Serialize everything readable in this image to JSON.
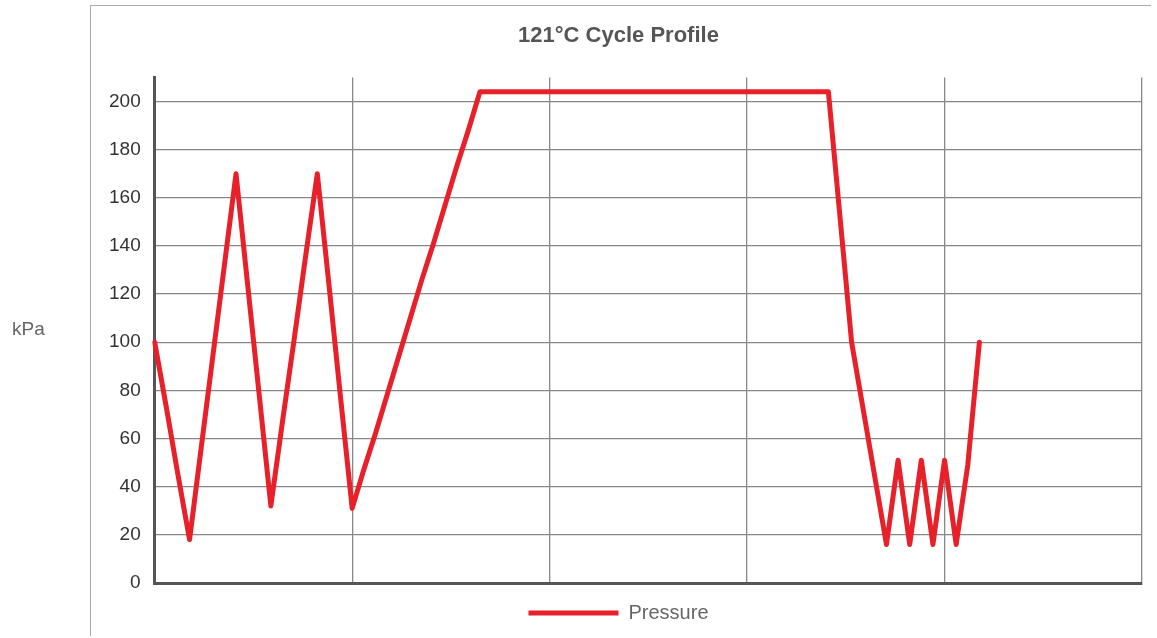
{
  "chart_data": {
    "type": "line",
    "title": "121°C Cycle Profile",
    "ylabel": "kPa",
    "categories": [
      null,
      null,
      null,
      null,
      null,
      null,
      null,
      null,
      null,
      null,
      null,
      null,
      null,
      null,
      null,
      null,
      null,
      null,
      null,
      null,
      null,
      null,
      null,
      null,
      null,
      null,
      null,
      null,
      null,
      null,
      null,
      null,
      null,
      null,
      null,
      null,
      null,
      null,
      null,
      null,
      null,
      null,
      null,
      null,
      null,
      null,
      null,
      null,
      null,
      null,
      null,
      null,
      null,
      null,
      null,
      null,
      null,
      null,
      null,
      null,
      null,
      null,
      null,
      null,
      null,
      null,
      null,
      null,
      null,
      null,
      null,
      null,
      null,
      null,
      null,
      null,
      null,
      null,
      null,
      null,
      null,
      null,
      null,
      null,
      null,
      null
    ],
    "series": [
      {
        "name": "Pressure",
        "color": "#e8202a",
        "values": [
          100,
          73,
          45,
          18,
          56,
          94,
          132,
          170,
          124,
          78,
          32,
          67,
          101,
          136,
          170,
          124,
          77,
          31,
          47,
          62,
          78,
          94,
          110,
          126,
          141,
          157,
          173,
          188,
          204,
          204,
          204,
          204,
          204,
          204,
          204,
          204,
          204,
          204,
          204,
          204,
          204,
          204,
          204,
          204,
          204,
          204,
          204,
          204,
          204,
          204,
          204,
          204,
          204,
          204,
          204,
          204,
          204,
          204,
          204,
          152,
          100,
          72,
          44,
          16,
          51,
          16,
          51,
          16,
          51,
          16,
          49,
          100,
          null,
          null,
          null,
          null,
          null,
          null,
          null,
          null,
          null,
          null,
          null,
          null,
          null,
          null
        ]
      }
    ],
    "ylim": [
      0,
      210
    ],
    "yticks": [
      0,
      20,
      40,
      60,
      80,
      100,
      120,
      140,
      160,
      180,
      200
    ],
    "grid": true,
    "legend": "bottom",
    "tick_labels": "y",
    "marker": "none",
    "line_style": "solid"
  }
}
